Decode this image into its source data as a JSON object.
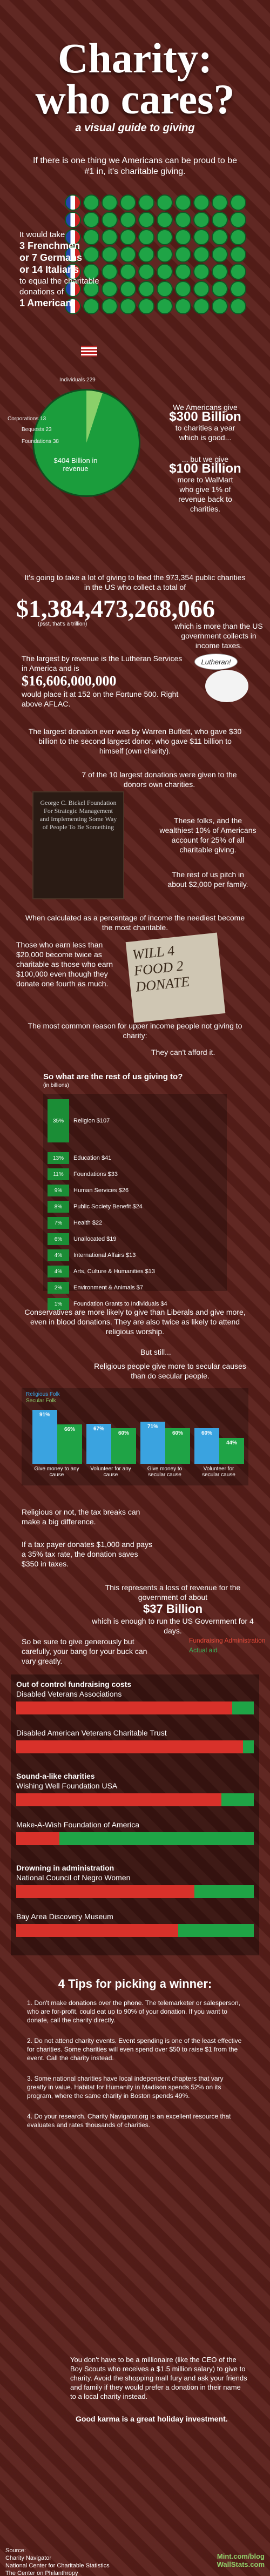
{
  "header": {
    "title_line1": "Charity:",
    "title_line2": "who cares?",
    "subtitle": "a visual guide to giving",
    "intro": "If there is one thing we Americans can be proud to be #1 in, it's charitable giving."
  },
  "comparison": {
    "line1": "It would take",
    "line2": "3 Frenchmen",
    "line3": "or 7 Germans",
    "line4": "or 14 Italians",
    "line5": "to equal the charitable donations of",
    "line6": "1 American."
  },
  "pie": {
    "labels": [
      "Individuals 229",
      "Corporations 13",
      "Bequests 23",
      "Foundations 38"
    ],
    "center": "$404 Billion in revenue"
  },
  "billions": {
    "text1": "We Americans give",
    "amount1": "$300 Billion",
    "text2": "to charities a year",
    "text3": "which is good...",
    "text4": "... but we give",
    "amount2": "$100 Billion",
    "text5": "more to WalMart",
    "text6": "who give 1% of revenue back to charities."
  },
  "spending": {
    "line1": "It's going to take a lot of giving to feed the 973,354 public charities in the US who collect a total of",
    "big_number": "$1,384,473,268,066",
    "small": "(psst, that's a trillion)",
    "line2": "which is more than the US government collects in income taxes."
  },
  "lutheran": {
    "text": "The largest by revenue is the Lutheran Services in America and is",
    "amount": "$16,606,000,000",
    "text2": "would place it at 152 on the Fortune 500. Right above AFLAC.",
    "sign": "Lutheran!"
  },
  "buffett": {
    "text": "The largest donation ever was by Warren Buffett, who gave $30 billion to the second largest donor, who gave $11 billion to himself (own charity)."
  },
  "foundations": {
    "headline": "7 of the 10 largest donations were given to the donors own charities.",
    "badge": "George C. Bickel Foundation For Strategic Management and Implementing Some Way of People To Be Something",
    "wealthy": "These folks, and the wealthiest 10% of Americans account for 25% of all charitable giving.",
    "rest": "The rest of us pitch in about $2,000 per family."
  },
  "percentage": {
    "headline": "When calculated as a percentage of income the neediest become the most charitable.",
    "body": "Those who earn less than $20,000 become twice as charitable as those who earn $100,000 even though they donate one fourth as much.",
    "sign": "WILL 4 FOOD 2 DONATE",
    "reason": "The most common reason for upper income people not giving to charity:",
    "afford": "They can't afford it."
  },
  "giving_chart": {
    "title": "So what are the rest of us giving to?",
    "unit": "(in billions)"
  },
  "chart_data": {
    "type": "bar",
    "title": "So what are the rest of us giving to?",
    "ylabel": "(in billions)",
    "categories": [
      "Religion",
      "Education",
      "Foundations",
      "Human Services",
      "Public Society Benefit",
      "Health",
      "Unallocated",
      "International Affairs",
      "Arts, Culture & Humanities",
      "Environment & Animals",
      "Foundation Grants to Individuals"
    ],
    "values": [
      107,
      41,
      33,
      26,
      24,
      22,
      19,
      13,
      13,
      7,
      4
    ],
    "percents": [
      "35%",
      "13%",
      "11%",
      "9%",
      "8%",
      "7%",
      "6%",
      "4%",
      "4%",
      "2%",
      "1%"
    ]
  },
  "conservatives": {
    "text": "Conservatives are more likely to give than Liberals and give more, even in blood donations. They are also twice as likely to attend religious worship.",
    "still": "But still...",
    "secular": "Religious people give more to secular causes than do secular people.",
    "legend1": "Religious Folk",
    "legend2": "Secular Folk",
    "groups": [
      "Give money to any cause",
      "Volunteer for any cause",
      "Give money to secular cause",
      "Volunteer for secular cause"
    ],
    "values": [
      "91%",
      "66%",
      "67%",
      "60%",
      "71%",
      "60%",
      "60%",
      "44%"
    ]
  },
  "tax": {
    "p1": "Religious or not, the tax breaks can make a big difference.",
    "p2": "If a tax payer donates $1,000 and pays a 35% tax rate, the donation saves $350 in taxes.",
    "p3": "This represents a loss of revenue for the government of about",
    "amount": "$37 Billion",
    "p4": "which is enough to run the US Government for 4 days.",
    "p5": "So be sure to give generously but carefully, your bang for your buck can vary greatly.",
    "legend1": "Fundraising Administration",
    "legend2": "Actual aid"
  },
  "bad_charities": {
    "h1": "Out of control fundraising costs",
    "c1": "Disabled Veterans Associations",
    "c2": "Disabled American Veterans Charitable Trust",
    "h2": "Sound-a-like charities",
    "c3": "Wishing Well Foundation USA",
    "c4": "Make-A-Wish Foundation of America",
    "h3": "Drowning in administration",
    "c5": "National Council of Negro Women",
    "c6": "Bay Area Discovery Museum"
  },
  "tips": {
    "title": "4 Tips for picking a winner:",
    "t1": "1. Don't make donations over the phone. The telemarketer or salesperson, who are for-profit, could eat up to 90% of your donation. If you want to donate, call the charity directly.",
    "t2": "2. Do not attend charity events. Event spending is one of the least effective for charities. Some charities will even spend over $50 to raise $1 from the event. Call the charity instead.",
    "t3": "3. Some national charities have local independent chapters that vary greatly in value. Habitat for Humanity in Madison spends 52% on its program, where the same charity in Boston spends 49%.",
    "t4": "4. Do your research. Charity Navigator.org is an excellent resource that evaluates and rates thousands of charities."
  },
  "closing": {
    "text": "You don't have to be a millionaire (like the CEO of the Boy Scouts who receives a $1.5 million salary) to give to charity. Avoid the shopping mall fury and ask your friends and family if they would prefer a donation in their name to a local charity instead.",
    "karma": "Good karma is a great holiday investment."
  },
  "footer": {
    "sources_title": "Source:",
    "s1": "Charity Navigator",
    "s2": "National Center for Charitable Statistics",
    "s3": "The Center on Philanthropy",
    "brand": "Mint.com/blog",
    "brand2": "WallStats.com"
  }
}
